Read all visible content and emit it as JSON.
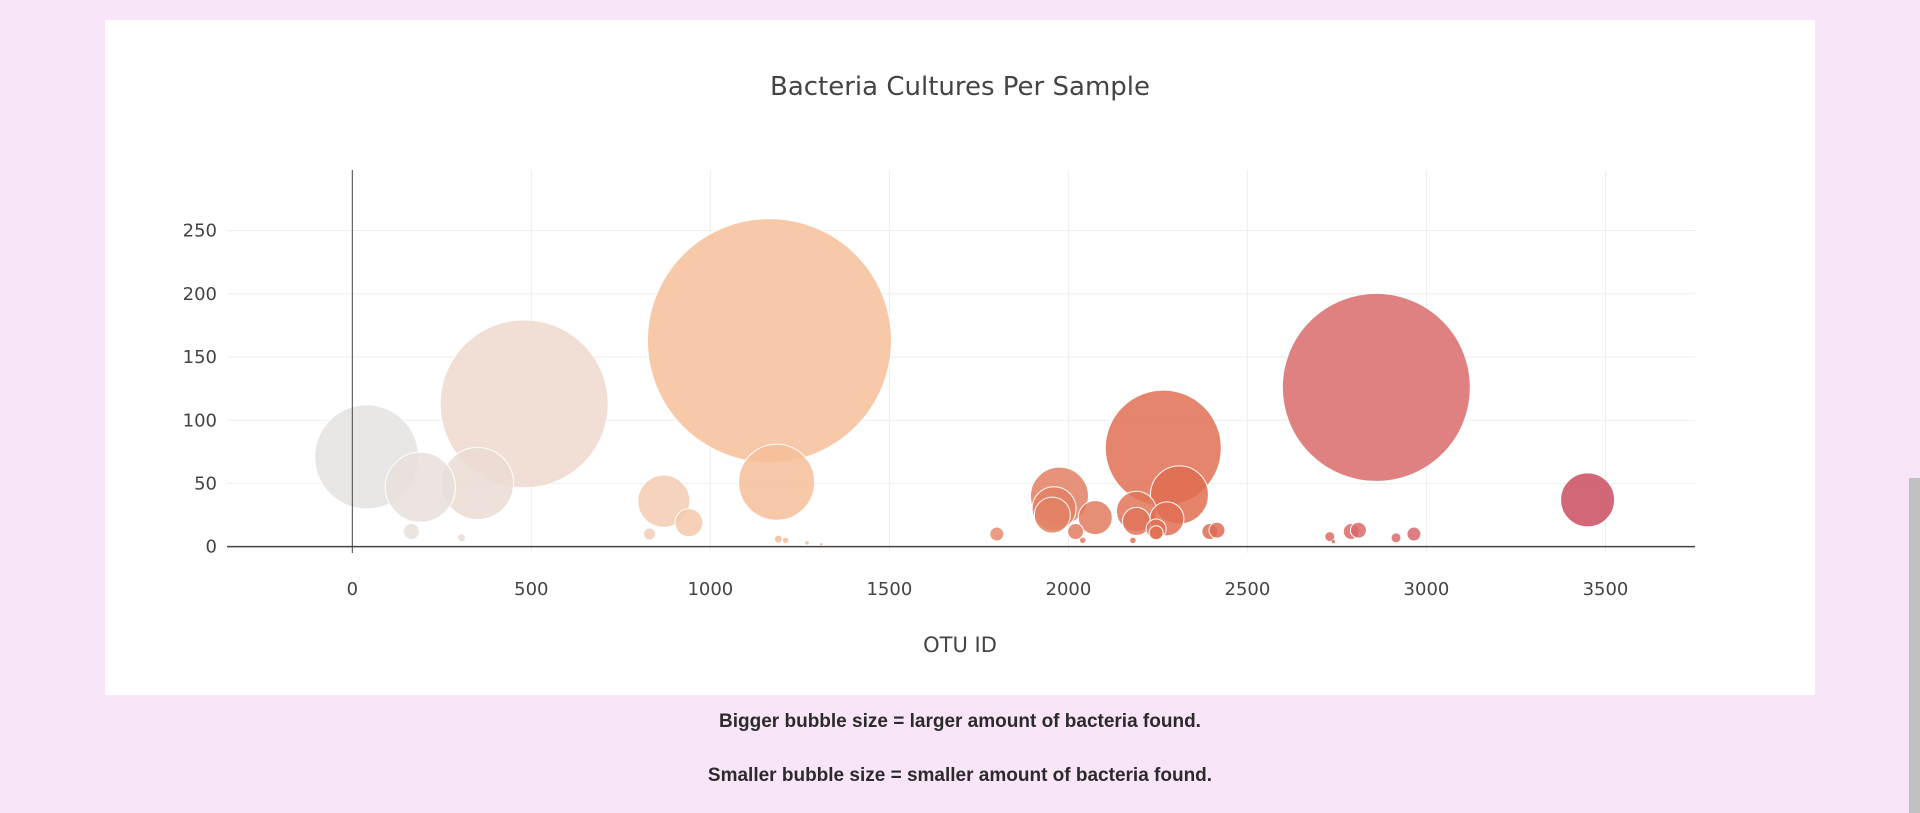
{
  "chart_data": {
    "type": "scatter",
    "title": "Bacteria Cultures Per Sample",
    "xlabel": "OTU ID",
    "ylabel": "",
    "xlim": [
      -350,
      3750
    ],
    "ylim": [
      -5,
      298
    ],
    "xticks": [
      0,
      500,
      1000,
      1500,
      2000,
      2500,
      3000,
      3500
    ],
    "yticks": [
      0,
      50,
      100,
      150,
      200,
      250
    ],
    "grid": true,
    "colorscale": [
      "#e4e4e4",
      "#f0d6c8",
      "#f7c09a",
      "#e58c70",
      "#e06c50",
      "#d86b6d",
      "#c94a5e"
    ],
    "series": [
      {
        "points": [
          {
            "x": 40,
            "y": 71,
            "r": 52
          },
          {
            "x": 190,
            "y": 47,
            "r": 35
          },
          {
            "x": 350,
            "y": 50,
            "r": 36
          },
          {
            "x": 480,
            "y": 113,
            "r": 84
          },
          {
            "x": 165,
            "y": 12,
            "r": 8
          },
          {
            "x": 305,
            "y": 7,
            "r": 4
          },
          {
            "x": 870,
            "y": 36,
            "r": 26
          },
          {
            "x": 940,
            "y": 19,
            "r": 14
          },
          {
            "x": 830,
            "y": 10,
            "r": 6
          },
          {
            "x": 1165,
            "y": 163,
            "r": 122
          },
          {
            "x": 1185,
            "y": 51,
            "r": 38
          },
          {
            "x": 1190,
            "y": 6,
            "r": 4
          },
          {
            "x": 1210,
            "y": 5,
            "r": 3
          },
          {
            "x": 1270,
            "y": 3,
            "r": 2
          },
          {
            "x": 1310,
            "y": 2,
            "r": 1.5
          },
          {
            "x": 1800,
            "y": 10,
            "r": 7
          },
          {
            "x": 1975,
            "y": 40,
            "r": 29
          },
          {
            "x": 1960,
            "y": 30,
            "r": 22
          },
          {
            "x": 1955,
            "y": 25,
            "r": 18
          },
          {
            "x": 2075,
            "y": 23,
            "r": 17
          },
          {
            "x": 2020,
            "y": 12,
            "r": 8
          },
          {
            "x": 2040,
            "y": 5,
            "r": 3
          },
          {
            "x": 2265,
            "y": 78,
            "r": 58
          },
          {
            "x": 2310,
            "y": 41,
            "r": 29
          },
          {
            "x": 2190,
            "y": 28,
            "r": 20
          },
          {
            "x": 2275,
            "y": 22,
            "r": 17
          },
          {
            "x": 2190,
            "y": 20,
            "r": 14
          },
          {
            "x": 2245,
            "y": 14,
            "r": 10
          },
          {
            "x": 2245,
            "y": 11,
            "r": 7
          },
          {
            "x": 2180,
            "y": 5,
            "r": 3
          },
          {
            "x": 2395,
            "y": 12,
            "r": 8
          },
          {
            "x": 2415,
            "y": 13,
            "r": 8
          },
          {
            "x": 2860,
            "y": 126,
            "r": 94
          },
          {
            "x": 2730,
            "y": 8,
            "r": 5
          },
          {
            "x": 2790,
            "y": 12,
            "r": 8
          },
          {
            "x": 2810,
            "y": 13,
            "r": 8
          },
          {
            "x": 2915,
            "y": 7,
            "r": 5
          },
          {
            "x": 2965,
            "y": 10,
            "r": 7
          },
          {
            "x": 2740,
            "y": 4,
            "r": 2
          },
          {
            "x": 3450,
            "y": 37,
            "r": 27
          }
        ]
      }
    ]
  },
  "captions": {
    "line1": "Bigger bubble size = larger amount of bacteria found.",
    "line2": "Smaller bubble size = smaller amount of bacteria found."
  }
}
